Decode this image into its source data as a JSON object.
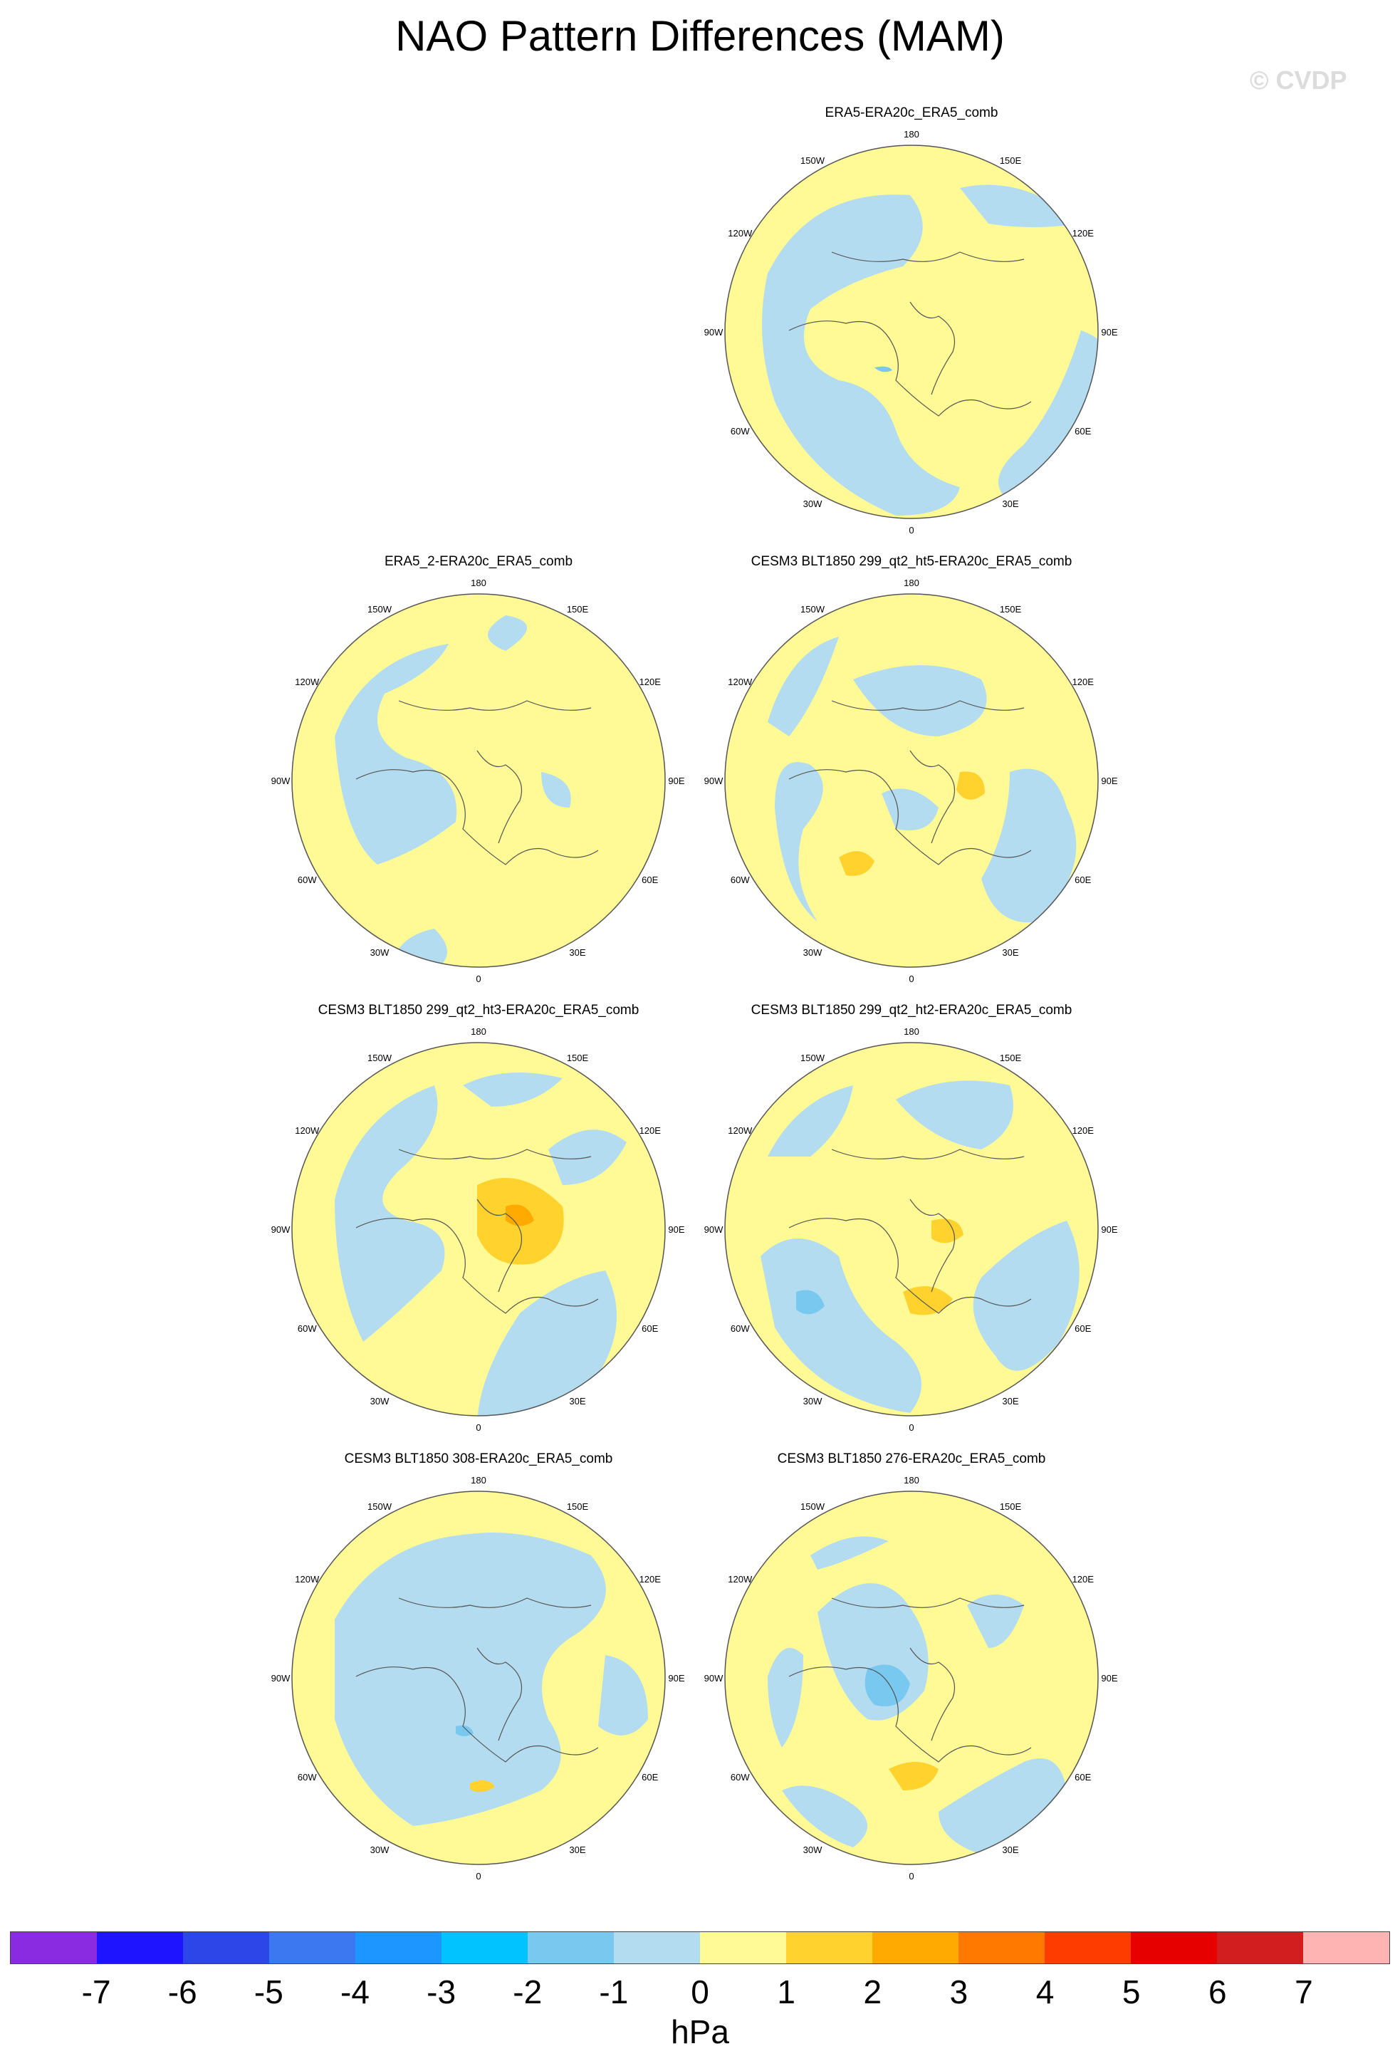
{
  "title": "NAO Pattern Differences (MAM)",
  "watermark": "© CVDP",
  "lon_labels": [
    "180",
    "150E",
    "120E",
    "90E",
    "60E",
    "30E",
    "0",
    "30W",
    "60W",
    "90W",
    "120W",
    "150W"
  ],
  "panels": [
    {
      "title": "ERA5-ERA20c_ERA5_comb"
    },
    {
      "title": "ERA5_2-ERA20c_ERA5_comb"
    },
    {
      "title": "CESM3 BLT1850 299_qt2_ht5-ERA20c_ERA5_comb"
    },
    {
      "title": "CESM3 BLT1850 299_qt2_ht3-ERA20c_ERA5_comb"
    },
    {
      "title": "CESM3 BLT1850 299_qt2_ht2-ERA20c_ERA5_comb"
    },
    {
      "title": "CESM3 BLT1850 308-ERA20c_ERA5_comb"
    },
    {
      "title": "CESM3 BLT1850 276-ERA20c_ERA5_comb"
    }
  ],
  "colorbar": {
    "colors": [
      "#8a2be2",
      "#1e14ff",
      "#2d46e8",
      "#3c78f0",
      "#1e96ff",
      "#00c3ff",
      "#78c8f0",
      "#b4dcf0",
      "#fffa96",
      "#ffd22d",
      "#ffaa00",
      "#ff7800",
      "#ff3c00",
      "#e60000",
      "#d21e1e",
      "#ffb4b4"
    ],
    "labels": [
      "-7",
      "-6",
      "-5",
      "-4",
      "-3",
      "-2",
      "-1",
      "0",
      "1",
      "2",
      "3",
      "4",
      "5",
      "6",
      "7"
    ],
    "units": "hPa"
  }
}
